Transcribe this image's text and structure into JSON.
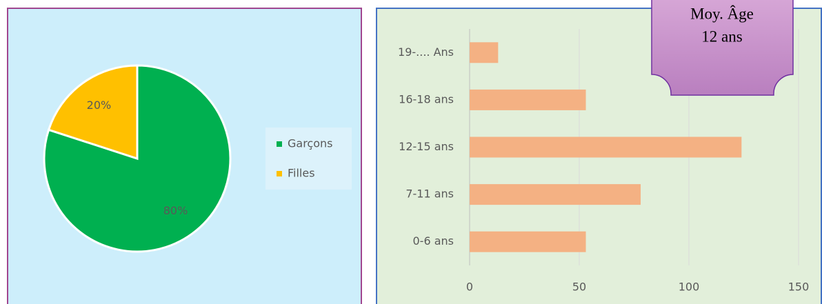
{
  "chart_data": [
    {
      "type": "pie",
      "categories": [
        "Garçons",
        "Filles"
      ],
      "values": [
        80,
        20
      ],
      "value_labels": [
        "80%",
        "20%"
      ],
      "colors": [
        "#00b050",
        "#ffc000"
      ],
      "legend": "right"
    },
    {
      "type": "barh",
      "categories": [
        "0-6 ans",
        "7-11 ans",
        "12-15 ans",
        "16-18 ans",
        "19-.... Ans"
      ],
      "values": [
        53,
        78,
        124,
        53,
        13
      ],
      "color": "#f4b183",
      "xlim": [
        0,
        150
      ],
      "xticks": [
        0,
        50,
        100,
        150
      ],
      "grid": true,
      "annotation": [
        "Moy. Âge",
        "12 ans"
      ]
    }
  ]
}
